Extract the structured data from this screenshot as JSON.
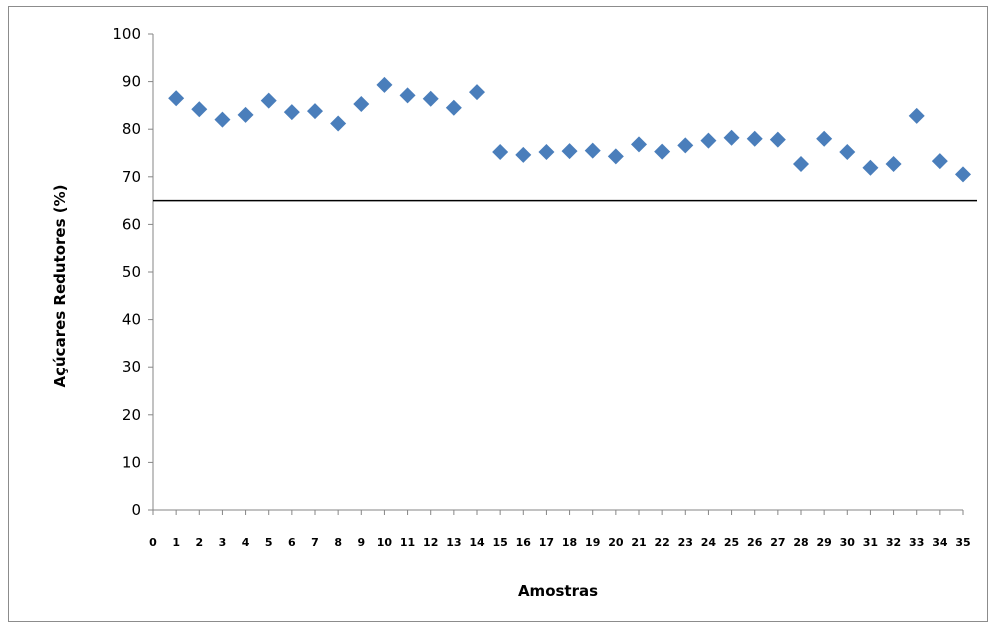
{
  "chart_data": {
    "type": "scatter",
    "title": "",
    "xlabel": "Amostras",
    "ylabel": "Açúcares Redutores (%)",
    "xlim": [
      0,
      35
    ],
    "ylim": [
      0,
      100
    ],
    "x_ticks": [
      0,
      1,
      2,
      3,
      4,
      5,
      6,
      7,
      8,
      9,
      10,
      11,
      12,
      13,
      14,
      15,
      16,
      17,
      18,
      19,
      20,
      21,
      22,
      23,
      24,
      25,
      26,
      27,
      28,
      29,
      30,
      31,
      32,
      33,
      34,
      35
    ],
    "y_ticks": [
      0,
      10,
      20,
      30,
      40,
      50,
      60,
      70,
      80,
      90,
      100
    ],
    "grid": false,
    "legend": "none",
    "marker": "diamond",
    "marker_color": "#4a7ebb",
    "reference_line": {
      "y": 65,
      "color": "#000000"
    },
    "series": [
      {
        "x": [
          1,
          2,
          3,
          4,
          5,
          6,
          7,
          8,
          9,
          10,
          11,
          12,
          13,
          14,
          15,
          16,
          17,
          18,
          19,
          20,
          21,
          22,
          23,
          24,
          25,
          26,
          27,
          28,
          29,
          30,
          31,
          32,
          33,
          34,
          35
        ],
        "values": [
          86.5,
          84.2,
          82.0,
          83.0,
          86.0,
          83.6,
          83.8,
          81.2,
          85.3,
          89.3,
          87.1,
          86.4,
          84.5,
          87.8,
          75.2,
          74.6,
          75.2,
          75.4,
          75.5,
          74.3,
          76.8,
          75.3,
          76.6,
          77.6,
          78.2,
          78.0,
          77.8,
          72.7,
          78.0,
          75.2,
          71.9,
          72.7,
          82.8,
          73.3,
          70.5
        ]
      }
    ]
  }
}
